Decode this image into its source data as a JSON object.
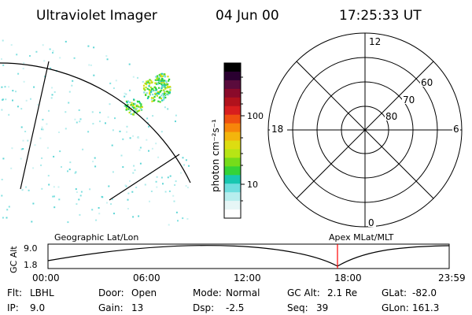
{
  "header": {
    "instrument": "Ultraviolet Imager",
    "date": "04 Jun 00",
    "time": "17:25:33 UT"
  },
  "colorbar": {
    "label": "photon cm⁻²s⁻¹",
    "ticks": [
      "100",
      "10"
    ],
    "colors": [
      "#000000",
      "#2a0030",
      "#5a0b3c",
      "#8a0a2a",
      "#b1121c",
      "#d81e1e",
      "#ef5010",
      "#f7860a",
      "#f3b50c",
      "#dddd11",
      "#b7e515",
      "#76dc1a",
      "#34d338",
      "#18c7b0",
      "#6fdede",
      "#b7eeee",
      "#e6f6f6",
      "#ffffff"
    ]
  },
  "polar_plot": {
    "mlt_labels": [
      "12",
      "18",
      "6",
      "0"
    ],
    "lat_labels": [
      "60",
      "70",
      "80"
    ]
  },
  "timeline": {
    "y_axis_label": "GC Alt",
    "y_ticks": [
      "9.0",
      "1.8"
    ],
    "left_label": "Geographic Lat/Lon",
    "right_label": "Apex MLat/MLT",
    "x_ticks": [
      "00:00",
      "06:00",
      "12:00",
      "18:00",
      "23:59"
    ],
    "marker_color": "#ff0000"
  },
  "status": {
    "rows": [
      [
        {
          "label": "Flt:",
          "value": "LBHL"
        },
        {
          "label": "Door:",
          "value": "Open"
        },
        {
          "label": "Mode:",
          "value": "Normal"
        },
        {
          "label": "GC Alt:",
          "value": "2.1 Re"
        },
        {
          "label": "GLat:",
          "value": "-82.0"
        }
      ],
      [
        {
          "label": "IP:",
          "value": "9.0"
        },
        {
          "label": "Gain:",
          "value": "13"
        },
        {
          "label": "Dsp:",
          "value": "-2.5"
        },
        {
          "label": "Seq:",
          "value": "39"
        },
        {
          "label": "GLon:",
          "value": "161.3"
        }
      ]
    ]
  }
}
